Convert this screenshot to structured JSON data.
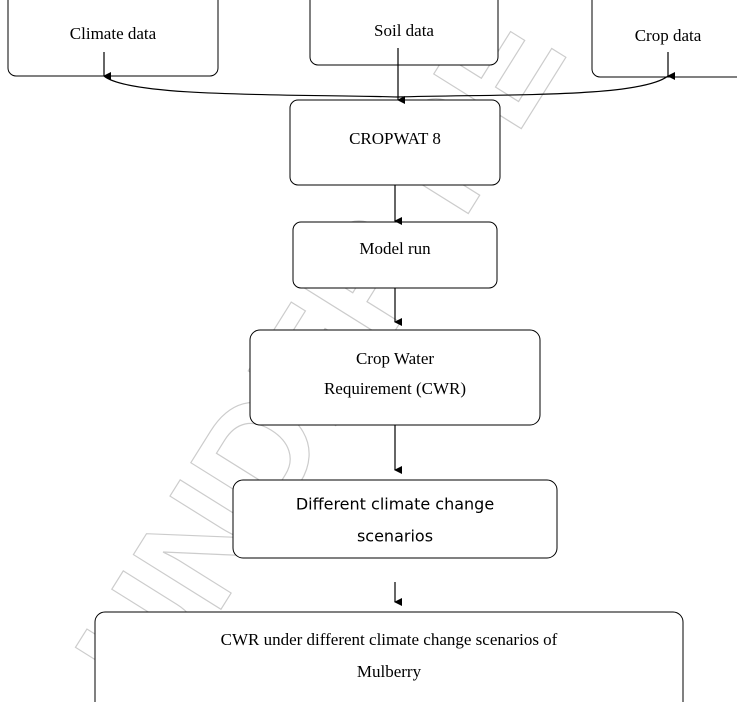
{
  "watermark": "UNDER PE",
  "nodes": [
    {
      "lines": [
        "Climate data"
      ]
    },
    {
      "lines": [
        "Soil data"
      ]
    },
    {
      "lines": [
        "Crop data"
      ]
    },
    {
      "lines": [
        "CROPWAT 8"
      ]
    },
    {
      "lines": [
        "Model run"
      ]
    },
    {
      "lines": [
        "Crop Water",
        "Requirement (CWR)"
      ]
    },
    {
      "lines": [
        "Different climate change",
        "scenarios"
      ]
    },
    {
      "lines": [
        "CWR under different climate change scenarios of",
        "Mulberry"
      ]
    }
  ]
}
